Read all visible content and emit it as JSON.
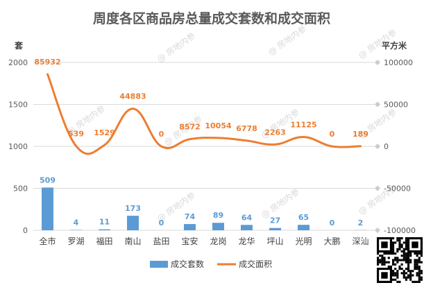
{
  "chart_data": {
    "type": "bar+line",
    "title": "周度各区商品房总量成交套数和成交面积",
    "left_axis": {
      "unit": "套",
      "ticks": [
        0,
        500,
        1000,
        1500,
        2000
      ],
      "range": [
        0,
        2000
      ]
    },
    "right_axis": {
      "unit": "平方米",
      "ticks": [
        -100000,
        -50000,
        0,
        50000,
        100000
      ],
      "range": [
        -100000,
        100000
      ]
    },
    "categories": [
      "全市",
      "罗湖",
      "福田",
      "南山",
      "盐田",
      "宝安",
      "龙岗",
      "龙华",
      "坪山",
      "光明",
      "大鹏",
      "深汕"
    ],
    "series": [
      {
        "name": "成交套数",
        "type": "bar",
        "axis": "left",
        "color": "#5b9bd5",
        "values": [
          509,
          4,
          11,
          173,
          0,
          74,
          89,
          64,
          27,
          65,
          0,
          2
        ]
      },
      {
        "name": "成交面积",
        "type": "line",
        "axis": "right",
        "color": "#ed7d31",
        "values": [
          85932,
          539,
          1529,
          44883,
          0,
          8572,
          10054,
          6778,
          2263,
          11125,
          0,
          189
        ]
      }
    ],
    "legend_position": "bottom",
    "grid": true
  },
  "watermark": "房地内参"
}
